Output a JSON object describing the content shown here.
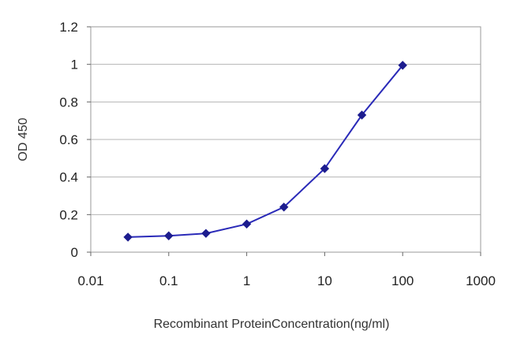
{
  "chart_data": {
    "type": "line",
    "title": "",
    "xlabel": "Recombinant ProteinConcentration(ng/ml)",
    "ylabel": "OD 450",
    "x_scale": "log",
    "xlim": [
      0.01,
      1000
    ],
    "ylim": [
      0,
      1.2
    ],
    "x_ticks": [
      "0.01",
      "0.1",
      "1",
      "10",
      "100",
      "1000"
    ],
    "y_ticks": [
      "0",
      "0.2",
      "0.4",
      "0.6",
      "0.8",
      "1",
      "1.2"
    ],
    "grid": "horizontal",
    "series": [
      {
        "color": "#2a2ab8",
        "x": [
          0.03,
          0.1,
          0.3,
          1,
          3,
          10,
          30,
          100
        ],
        "y": [
          0.08,
          0.087,
          0.1,
          0.15,
          0.24,
          0.445,
          0.73,
          0.995
        ]
      }
    ]
  }
}
